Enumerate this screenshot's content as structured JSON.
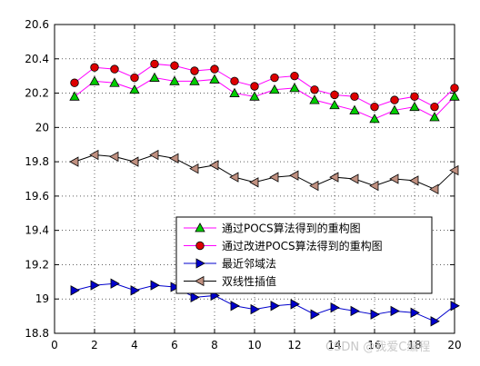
{
  "chart_data": {
    "type": "line",
    "title": "",
    "xlabel": "",
    "ylabel": "",
    "xlim": [
      0,
      20
    ],
    "ylim": [
      18.8,
      20.6
    ],
    "xticks": [
      0,
      2,
      4,
      6,
      8,
      10,
      12,
      14,
      16,
      18,
      20
    ],
    "yticks": [
      18.8,
      19,
      19.2,
      19.4,
      19.6,
      19.8,
      20,
      20.2,
      20.4,
      20.6
    ],
    "grid": "dotted",
    "legend_position": "lower-right",
    "x": [
      1,
      2,
      3,
      4,
      5,
      6,
      7,
      8,
      9,
      10,
      11,
      12,
      13,
      14,
      15,
      16,
      17,
      18,
      19,
      20
    ],
    "series": [
      {
        "name": "通过POCS算法得到的重构图",
        "color": "#ff00ff",
        "marker": "triangle-up",
        "marker_color": "#00cc00",
        "values": [
          20.18,
          20.27,
          20.26,
          20.22,
          20.29,
          20.27,
          20.27,
          20.28,
          20.2,
          20.18,
          20.22,
          20.23,
          20.16,
          20.13,
          20.1,
          20.05,
          20.1,
          20.12,
          20.06,
          20.18
        ]
      },
      {
        "name": "通过改进POCS算法得到的重构图",
        "color": "#ff00ff",
        "marker": "circle",
        "marker_color": "#dd0000",
        "values": [
          20.26,
          20.35,
          20.34,
          20.29,
          20.37,
          20.36,
          20.33,
          20.34,
          20.27,
          20.24,
          20.29,
          20.3,
          20.22,
          20.19,
          20.18,
          20.12,
          20.16,
          20.18,
          20.12,
          20.23
        ]
      },
      {
        "name": "最近邻域法",
        "color": "#0000cc",
        "marker": "triangle-right",
        "marker_color": "#0000cc",
        "values": [
          19.05,
          19.08,
          19.09,
          19.05,
          19.08,
          19.07,
          19.01,
          19.02,
          18.96,
          18.94,
          18.96,
          18.97,
          18.91,
          18.95,
          18.93,
          18.91,
          18.93,
          18.92,
          18.87,
          18.96
        ]
      },
      {
        "name": "双线性插值",
        "color": "#000000",
        "marker": "triangle-left",
        "marker_color": "#c09080",
        "values": [
          19.8,
          19.84,
          19.83,
          19.8,
          19.84,
          19.82,
          19.76,
          19.78,
          19.71,
          19.68,
          19.71,
          19.72,
          19.66,
          19.71,
          19.7,
          19.66,
          19.7,
          19.69,
          19.64,
          19.75
        ]
      }
    ]
  },
  "watermark": "CSDN @我爱C编程"
}
